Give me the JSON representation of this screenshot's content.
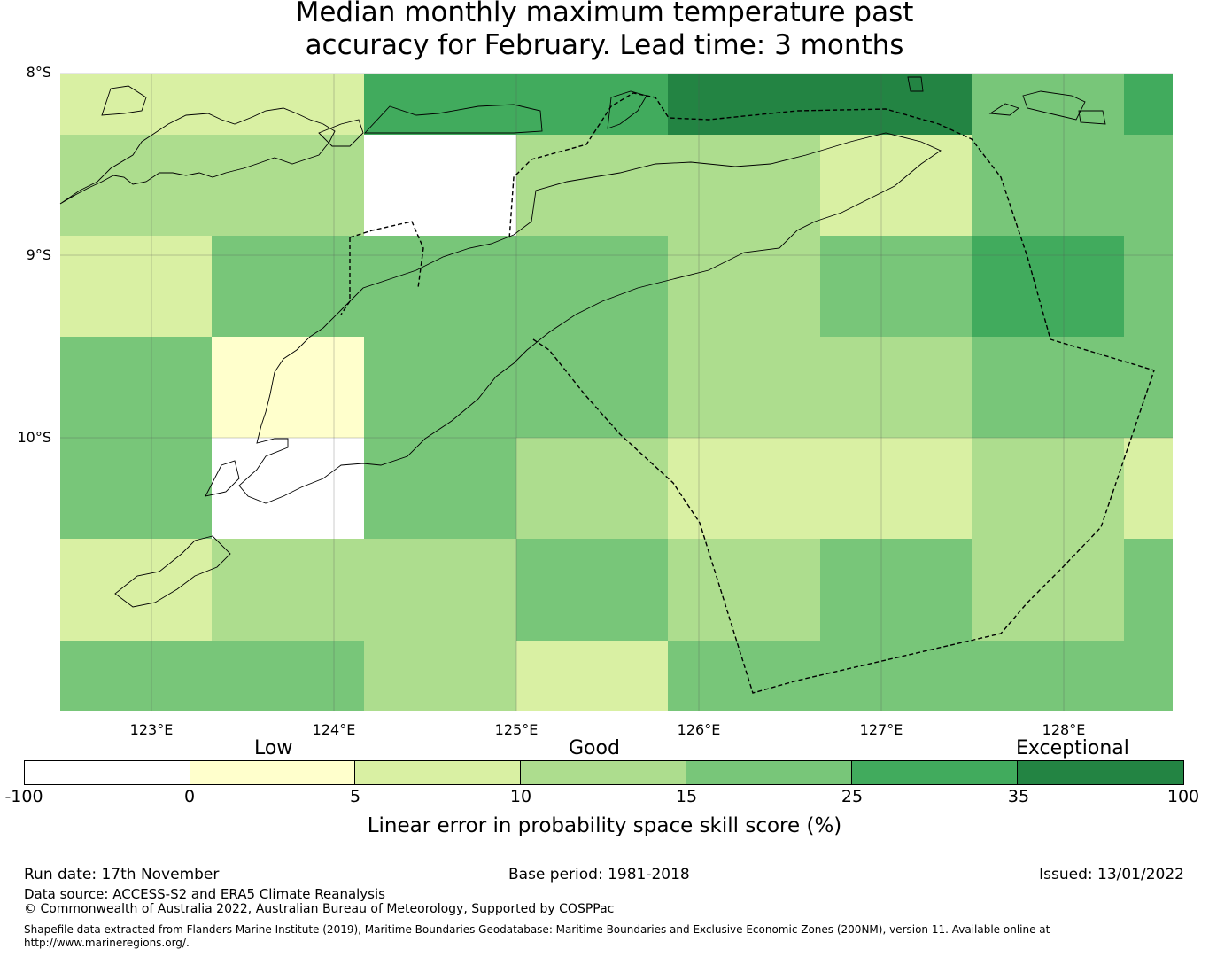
{
  "title_line1": "Median monthly maximum temperature past",
  "title_line2": "accuracy for February. Lead time: 3 months",
  "latitude_labels": [
    "8°S",
    "9°S",
    "10°S"
  ],
  "longitude_labels": [
    "123°E",
    "124°E",
    "125°E",
    "126°E",
    "127°E",
    "128°E"
  ],
  "grid_cells": [
    [
      "c5",
      "c5",
      "c25",
      "c25",
      "c35",
      "c35",
      "c15b",
      "c25"
    ],
    [
      "c10",
      "c10",
      "c_neg",
      "c10",
      "c10",
      "c5",
      "c15b",
      "c15b"
    ],
    [
      "c5",
      "c15b",
      "c15b",
      "c15b",
      "c10",
      "c15b",
      "c25",
      "c15b"
    ],
    [
      "c15b",
      "c0",
      "c15b",
      "c15b",
      "c10",
      "c10",
      "c15b",
      "c15b"
    ],
    [
      "c15b",
      "c_neg",
      "c15b",
      "c10",
      "c5",
      "c5",
      "c10",
      "c5"
    ],
    [
      "c5",
      "c10",
      "c10",
      "c15b",
      "c10",
      "c15b",
      "c10",
      "c15b"
    ],
    [
      "c15b",
      "c15b",
      "c10",
      "c5",
      "c15b",
      "c15b",
      "c15b",
      "c15b"
    ]
  ],
  "colors": {
    "c_neg": "#ffffff",
    "c0": "#ffffcc",
    "c5": "#d9f0a3",
    "c10": "#addd8e",
    "c15b": "#78c679",
    "c25": "#41ab5d",
    "c35": "#238443"
  },
  "legend": {
    "categories": [
      "Low",
      "Good",
      "Exceptional"
    ],
    "ticks": [
      "-100",
      "0",
      "5",
      "10",
      "15",
      "25",
      "35",
      "100"
    ],
    "segment_colors": [
      "#ffffff",
      "#ffffcc",
      "#d9f0a3",
      "#addd8e",
      "#78c679",
      "#41ab5d",
      "#238443"
    ],
    "label": "Linear error in probability space skill score (%)"
  },
  "footer": {
    "run_date": "Run date: 17th November",
    "base_period": "Base period: 1981-2018",
    "issued": "Issued: 13/01/2022",
    "data_source": "Data source: ACCESS-S2 and ERA5 Climate Reanalysis",
    "copyright": "© Commonwealth of Australia 2022, Australian Bureau of Meteorology, Supported by COSPPac",
    "shapefile_line1": "Shapefile data extracted from Flanders Marine Institute (2019), Maritime Boundaries Geodatabase: Maritime Boundaries and Exclusive Economic Zones (200NM), version 11. Available online at",
    "shapefile_line2": "http://www.marineregions.org/."
  }
}
